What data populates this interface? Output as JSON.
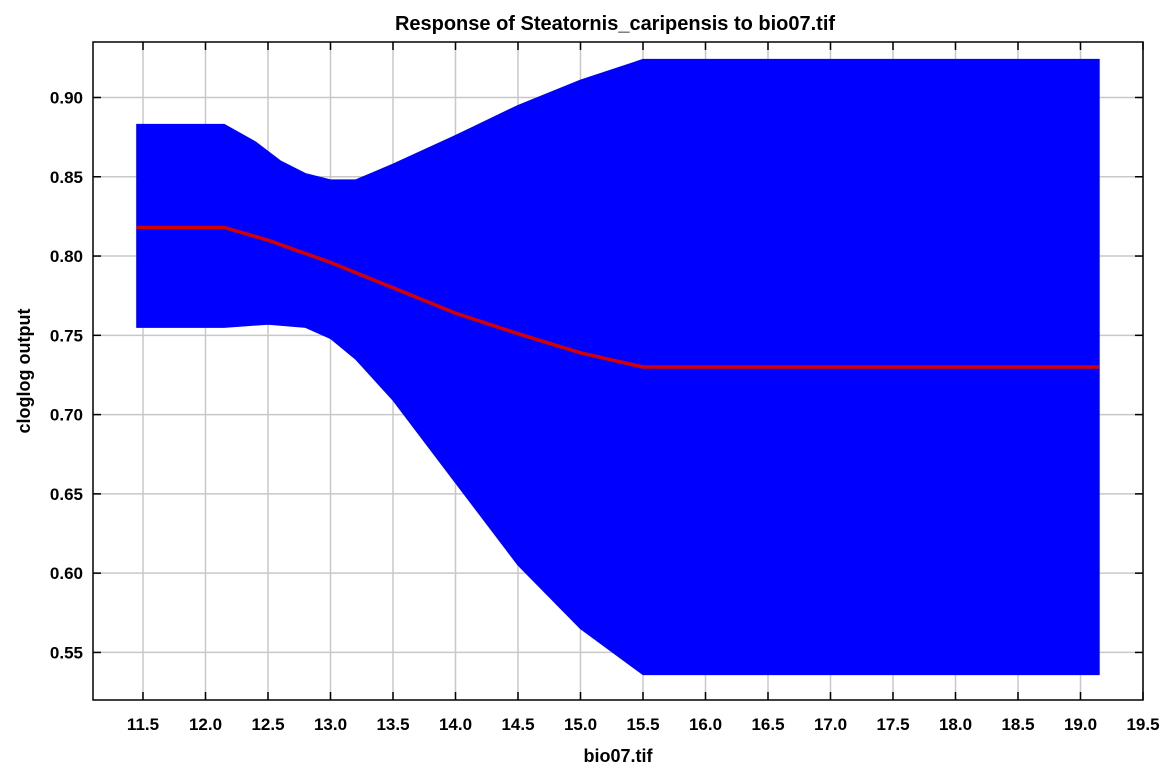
{
  "chart_data": {
    "type": "area",
    "title": "Response of Steatornis_caripensis to bio07.tif",
    "xlabel": "bio07.tif",
    "ylabel": "cloglog output",
    "xlim": [
      11.1,
      19.5
    ],
    "ylim": [
      0.52,
      0.935
    ],
    "xticks": [
      "11.5",
      "12.0",
      "12.5",
      "13.0",
      "13.5",
      "14.0",
      "14.5",
      "15.0",
      "15.5",
      "16.0",
      "16.5",
      "17.0",
      "17.5",
      "18.0",
      "18.5",
      "19.0",
      "19.5"
    ],
    "yticks": [
      "0.55",
      "0.60",
      "0.65",
      "0.70",
      "0.75",
      "0.80",
      "0.85",
      "0.90"
    ],
    "grid": true,
    "colors": {
      "band": "#0000ff",
      "mean": "#d40000"
    },
    "series": [
      {
        "role": "mean",
        "x": [
          11.45,
          12.15,
          12.5,
          13.0,
          13.5,
          14.0,
          14.5,
          15.0,
          15.5,
          16.0,
          17.0,
          18.0,
          19.15
        ],
        "y": [
          0.818,
          0.818,
          0.81,
          0.796,
          0.78,
          0.764,
          0.751,
          0.739,
          0.73,
          0.73,
          0.73,
          0.73,
          0.73
        ]
      },
      {
        "role": "upper",
        "x": [
          11.45,
          12.15,
          12.4,
          12.6,
          12.8,
          13.0,
          13.2,
          13.5,
          14.0,
          14.5,
          15.0,
          15.5,
          16.0,
          17.0,
          18.0,
          19.15
        ],
        "y": [
          0.883,
          0.883,
          0.872,
          0.86,
          0.852,
          0.848,
          0.848,
          0.858,
          0.876,
          0.895,
          0.911,
          0.924,
          0.924,
          0.924,
          0.924,
          0.924
        ]
      },
      {
        "role": "lower",
        "x": [
          11.45,
          12.15,
          12.5,
          12.8,
          13.0,
          13.2,
          13.5,
          14.0,
          14.5,
          15.0,
          15.5,
          16.0,
          17.0,
          18.0,
          19.15
        ],
        "y": [
          0.755,
          0.755,
          0.757,
          0.755,
          0.748,
          0.735,
          0.709,
          0.657,
          0.605,
          0.565,
          0.536,
          0.536,
          0.536,
          0.536,
          0.536
        ]
      }
    ]
  }
}
